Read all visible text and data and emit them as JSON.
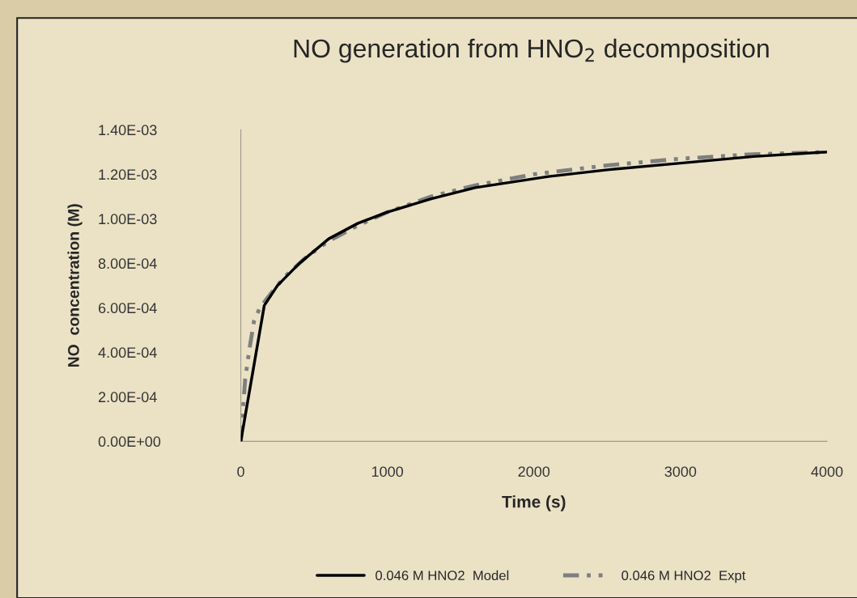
{
  "chart_data": {
    "type": "line",
    "title": "NO generation from HNO$_{2}$ decomposition",
    "xlabel": "Time (s)",
    "ylabel": "NO  concentration (M)",
    "xlim": [
      0,
      4000
    ],
    "xticks": [
      0,
      1000,
      2000,
      3000,
      4000
    ],
    "ylim": [
      0,
      0.0014
    ],
    "yticks": [
      {
        "value": 0,
        "label": "0.00E+00"
      },
      {
        "value": 0.0002,
        "label": "2.00E-04"
      },
      {
        "value": 0.0004,
        "label": "4.00E-04"
      },
      {
        "value": 0.0006,
        "label": "6.00E-04"
      },
      {
        "value": 0.0008,
        "label": "8.00E-04"
      },
      {
        "value": 0.001,
        "label": "1.00E-03"
      },
      {
        "value": 0.0012,
        "label": "1.20E-03"
      },
      {
        "value": 0.0014,
        "label": "1.40E-03"
      }
    ],
    "grid": false,
    "legend": "bottom",
    "marker": "none",
    "series": [
      {
        "name": "0.046 M HNO2  Model",
        "color": "#000000",
        "line_style": "solid",
        "x": [
          0,
          160,
          250,
          400,
          600,
          800,
          1000,
          1300,
          1600,
          2100,
          2500,
          3000,
          3500,
          4000
        ],
        "values": [
          0.0,
          0.00061,
          0.0007,
          0.0008,
          0.00091,
          0.00098,
          0.00103,
          0.00109,
          0.00114,
          0.00119,
          0.00122,
          0.00125,
          0.00128,
          0.0013
        ]
      },
      {
        "name": "0.046 M HNO2  Expt",
        "color": "#7f7f7f",
        "line_style": "dashed",
        "x": [
          0,
          15,
          30,
          60,
          90,
          130,
          200,
          300,
          450,
          600,
          800,
          1000,
          1300,
          1600,
          2000,
          2500,
          3000,
          3500,
          4000
        ],
        "values": [
          0.0,
          0.00015,
          0.00028,
          0.00042,
          0.00054,
          0.0006,
          0.00066,
          0.00074,
          0.00083,
          0.0009,
          0.00097,
          0.00103,
          0.0011,
          0.00115,
          0.0012,
          0.00124,
          0.00127,
          0.00129,
          0.0013
        ]
      }
    ]
  }
}
